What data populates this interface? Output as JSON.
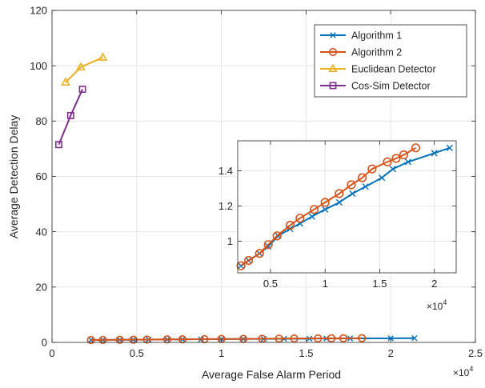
{
  "chart_data": [
    {
      "type": "line",
      "xlabel": "Average False Alarm Period",
      "ylabel": "Average Detection Delay",
      "x_multiplier_label": "×10",
      "x_multiplier_exp": "4",
      "xlim": [
        0,
        25000
      ],
      "ylim": [
        0,
        120
      ],
      "xticks": [
        0,
        5000,
        10000,
        15000,
        20000,
        25000
      ],
      "xtick_labels": [
        "0",
        "0.5",
        "1",
        "1.5",
        "2",
        "2.5"
      ],
      "yticks": [
        0,
        20,
        40,
        60,
        80,
        100,
        120
      ],
      "ytick_labels": [
        "0",
        "20",
        "40",
        "60",
        "80",
        "100",
        "120"
      ],
      "grid": true,
      "legend_position": "top-right",
      "series": [
        {
          "name": "Algorithm 1",
          "color": "#0072BD",
          "marker": "x",
          "x": [
            2300,
            3000,
            4000,
            4800,
            5700,
            6800,
            7700,
            8800,
            10000,
            11300,
            12500,
            13700,
            15200,
            16200,
            17600,
            20000,
            21400
          ],
          "y": [
            0.86,
            0.89,
            0.93,
            0.97,
            1.03,
            1.07,
            1.1,
            1.14,
            1.18,
            1.22,
            1.27,
            1.31,
            1.36,
            1.41,
            1.45,
            1.5,
            1.53
          ]
        },
        {
          "name": "Algorithm 2",
          "color": "#D95319",
          "marker": "o",
          "x": [
            2300,
            3000,
            4000,
            4800,
            5600,
            6800,
            7700,
            9000,
            10000,
            11300,
            12400,
            13400,
            14300,
            15700,
            16500,
            17200,
            18300
          ],
          "y": [
            0.86,
            0.89,
            0.93,
            0.98,
            1.03,
            1.09,
            1.13,
            1.18,
            1.22,
            1.27,
            1.32,
            1.36,
            1.41,
            1.45,
            1.47,
            1.49,
            1.53
          ]
        },
        {
          "name": "Euclidean Detector",
          "color": "#EDB120",
          "marker": "triangle",
          "x": [
            800,
            1700,
            3000
          ],
          "y": [
            94,
            99.5,
            103
          ]
        },
        {
          "name": "Cos-Sim Detector",
          "color": "#7E2F8E",
          "marker": "square",
          "x": [
            400,
            1100,
            1800
          ],
          "y": [
            71.5,
            82,
            91.5
          ]
        }
      ]
    },
    {
      "type": "line",
      "role": "inset",
      "x_multiplier_label": "×10",
      "x_multiplier_exp": "4",
      "xlim": [
        2000,
        22000
      ],
      "ylim": [
        0.82,
        1.57
      ],
      "xticks": [
        5000,
        10000,
        15000,
        20000
      ],
      "xtick_labels": [
        "0.5",
        "1",
        "1.5",
        "2"
      ],
      "yticks": [
        1.0,
        1.2,
        1.4
      ],
      "ytick_labels": [
        "1",
        "1.2",
        "1.4"
      ],
      "grid": true,
      "series_ref": [
        "Algorithm 1",
        "Algorithm 2"
      ]
    }
  ]
}
